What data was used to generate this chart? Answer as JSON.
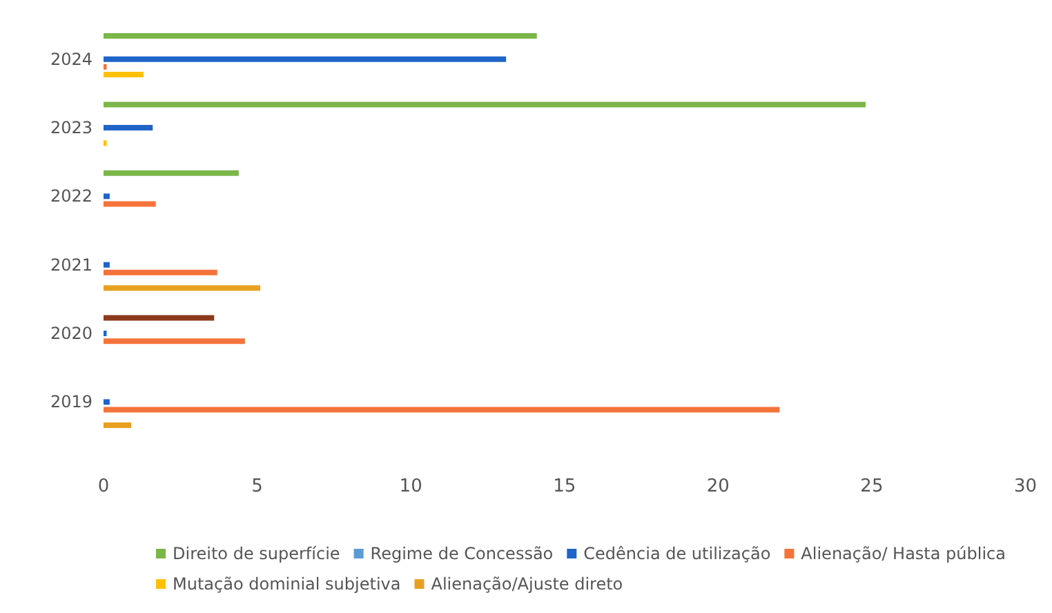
{
  "chart_data": {
    "type": "bar",
    "orientation": "horizontal",
    "categories": [
      "2024",
      "2023",
      "2022",
      "2021",
      "2020",
      "2019"
    ],
    "series": [
      {
        "name": "Direito de superfície",
        "color": "#7ab648",
        "values": [
          14.1,
          24.8,
          4.4,
          null,
          null,
          null
        ]
      },
      {
        "color": "#8b3a1e",
        "values": [
          null,
          null,
          null,
          null,
          3.6,
          null
        ]
      },
      {
        "name": "Regime de Concessão",
        "color": "#5b9bd5",
        "values": [
          null,
          null,
          null,
          null,
          null,
          null
        ]
      },
      {
        "name": "Cedência de utilização",
        "color": "#1f64c8",
        "values": [
          13.1,
          1.6,
          0.2,
          0.2,
          0.1,
          0.2
        ]
      },
      {
        "name": "Alienação/ Hasta pública",
        "color": "#f4733a",
        "values": [
          0.1,
          null,
          1.7,
          3.7,
          4.6,
          22.0
        ]
      },
      {
        "name": "Mutação dominial subjetiva",
        "color": "#ffc000",
        "values": [
          1.3,
          0.1,
          null,
          null,
          null,
          null
        ]
      },
      {
        "name": "Alienação/Ajuste direto",
        "color": "#e8a020",
        "values": [
          null,
          null,
          null,
          5.1,
          null,
          0.9
        ]
      }
    ],
    "xlim": [
      0,
      30
    ],
    "xticks": [
      0,
      5,
      10,
      15,
      20,
      25,
      30
    ],
    "grid": false,
    "legend": "bottom"
  }
}
